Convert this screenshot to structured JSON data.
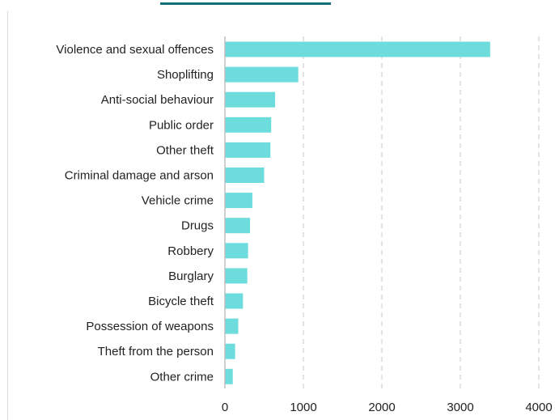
{
  "chart_data": {
    "type": "bar",
    "orientation": "horizontal",
    "title": "",
    "xlabel": "",
    "ylabel": "",
    "categories": [
      "Violence and sexual offences",
      "Shoplifting",
      "Anti-social behaviour",
      "Public order",
      "Other theft",
      "Criminal damage and arson",
      "Vehicle crime",
      "Drugs",
      "Robbery",
      "Burglary",
      "Bicycle theft",
      "Possession of weapons",
      "Theft from the person",
      "Other crime"
    ],
    "values": [
      3380,
      935,
      640,
      590,
      580,
      500,
      350,
      320,
      295,
      285,
      230,
      170,
      130,
      100
    ],
    "xlim": [
      0,
      4000
    ],
    "xticks": [
      0,
      1000,
      2000,
      3000,
      4000
    ],
    "grid": "vertical dashed",
    "legend": "none",
    "colors": {
      "bar": "#6ddcdc",
      "accent": "#13707a",
      "grid": "#c8c8c8",
      "axis": "#bfbfbf",
      "text": "#222222"
    }
  }
}
